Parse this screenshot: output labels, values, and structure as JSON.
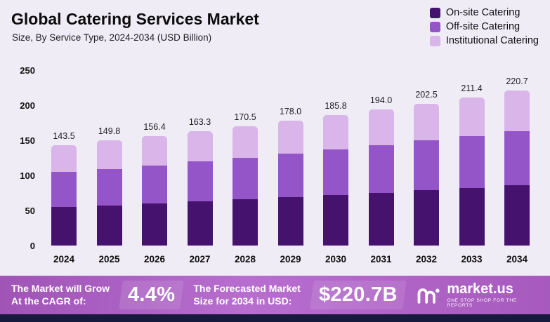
{
  "header": {
    "title": "Global Catering Services Market",
    "subtitle": "Size, By Service Type, 2024-2034 (USD Billion)"
  },
  "chart_data": {
    "type": "bar",
    "stacked": true,
    "title": "Global Catering Services Market",
    "subtitle": "Size, By Service Type, 2024-2034 (USD Billion)",
    "unit": "USD Billion",
    "categories": [
      "2024",
      "2025",
      "2026",
      "2027",
      "2028",
      "2029",
      "2030",
      "2031",
      "2032",
      "2033",
      "2034"
    ],
    "series": [
      {
        "name": "On-site Catering",
        "color": "#45136e",
        "values": [
          55,
          57.5,
          60,
          63,
          66,
          69,
          72,
          75.5,
          79,
          82.5,
          86
        ]
      },
      {
        "name": "Off-site Catering",
        "color": "#9355c8",
        "values": [
          50,
          52,
          54.5,
          57,
          59.5,
          62,
          65,
          68,
          71,
          74,
          77.5
        ]
      },
      {
        "name": "Institutional Catering",
        "color": "#d9b5ea",
        "values": [
          38.5,
          40.3,
          41.9,
          43.3,
          45,
          47,
          48.8,
          50.5,
          52.5,
          54.9,
          57.2
        ]
      }
    ],
    "totals": [
      "143.5",
      "149.8",
      "156.4",
      "163.3",
      "170.5",
      "178.0",
      "185.8",
      "194.0",
      "202.5",
      "211.4",
      "220.7"
    ],
    "ylim": [
      0,
      250
    ],
    "yticks": [
      0,
      50,
      100,
      150,
      200,
      250
    ],
    "grid": false,
    "legend_position": "top-right"
  },
  "banner": {
    "cagr_label_line1": "The Market will Grow",
    "cagr_label_line2": "At the CAGR of:",
    "cagr_value": "4.4%",
    "forecast_label_line1": "The Forecasted Market",
    "forecast_label_line2": "Size for 2034 in USD:",
    "forecast_value": "$220.7B",
    "brand": "market.us",
    "brand_tagline": "ONE STOP SHOP FOR THE REPORTS"
  }
}
